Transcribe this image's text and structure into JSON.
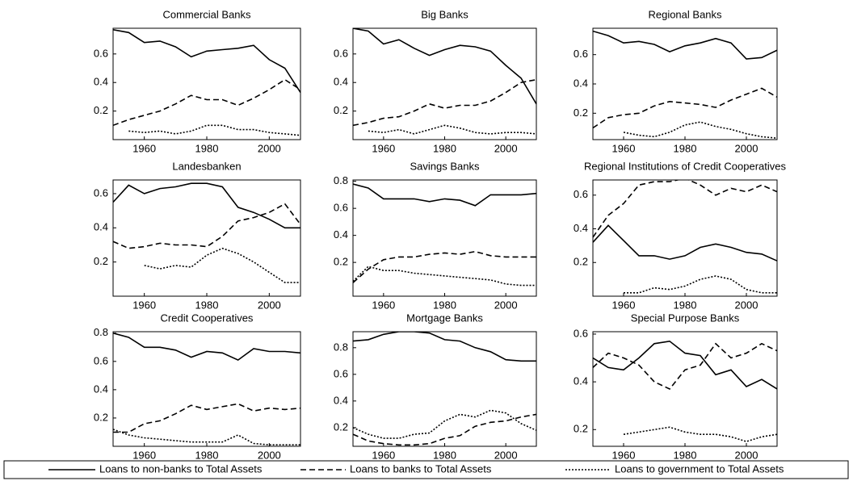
{
  "chart_data": [
    {
      "type": "line",
      "title": "Commercial Banks",
      "x": [
        1950,
        1955,
        1960,
        1965,
        1970,
        1975,
        1980,
        1985,
        1990,
        1995,
        2000,
        2005,
        2010
      ],
      "xlim": [
        1950,
        2010
      ],
      "xticks": [
        1960,
        1980,
        2000
      ],
      "ylim": [
        0,
        0.78
      ],
      "yticks": [
        0.2,
        0.4,
        0.6
      ],
      "series": [
        {
          "name": "Loans to non-banks to Total Assets",
          "dash": "solid",
          "color": "#000000",
          "values": [
            0.77,
            0.75,
            0.68,
            0.69,
            0.65,
            0.58,
            0.62,
            0.63,
            0.64,
            0.66,
            0.56,
            0.5,
            0.33
          ]
        },
        {
          "name": "Loans to banks to Total Assets",
          "dash": "dashed",
          "color": "#000000",
          "values": [
            0.1,
            0.14,
            0.17,
            0.2,
            0.25,
            0.31,
            0.28,
            0.28,
            0.24,
            0.29,
            0.35,
            0.42,
            0.35
          ]
        },
        {
          "name": "Loans to government to Total Assets",
          "dash": "dotted",
          "color": "#000000",
          "values": [
            null,
            0.06,
            0.05,
            0.06,
            0.04,
            0.06,
            0.1,
            0.1,
            0.07,
            0.07,
            0.05,
            0.04,
            0.03
          ]
        }
      ]
    },
    {
      "type": "line",
      "title": "Big Banks",
      "x": [
        1950,
        1955,
        1960,
        1965,
        1970,
        1975,
        1980,
        1985,
        1990,
        1995,
        2000,
        2005,
        2010
      ],
      "xlim": [
        1950,
        2010
      ],
      "xticks": [
        1960,
        1980,
        2000
      ],
      "ylim": [
        0,
        0.78
      ],
      "yticks": [
        0.2,
        0.4,
        0.6
      ],
      "series": [
        {
          "dash": "solid",
          "color": "#000000",
          "values": [
            0.78,
            0.76,
            0.67,
            0.7,
            0.64,
            0.59,
            0.63,
            0.66,
            0.65,
            0.62,
            0.52,
            0.43,
            0.25
          ]
        },
        {
          "dash": "dashed",
          "color": "#000000",
          "values": [
            0.1,
            0.12,
            0.15,
            0.16,
            0.2,
            0.25,
            0.22,
            0.24,
            0.24,
            0.27,
            0.33,
            0.4,
            0.42
          ]
        },
        {
          "dash": "dotted",
          "color": "#000000",
          "values": [
            null,
            0.06,
            0.05,
            0.07,
            0.04,
            0.07,
            0.1,
            0.08,
            0.05,
            0.04,
            0.05,
            0.05,
            0.04
          ]
        }
      ]
    },
    {
      "type": "line",
      "title": "Regional Banks",
      "x": [
        1950,
        1955,
        1960,
        1965,
        1970,
        1975,
        1980,
        1985,
        1990,
        1995,
        2000,
        2005,
        2010
      ],
      "xlim": [
        1950,
        2010
      ],
      "xticks": [
        1960,
        1980,
        2000
      ],
      "ylim": [
        0.02,
        0.78
      ],
      "yticks": [
        0.2,
        0.4,
        0.6
      ],
      "series": [
        {
          "dash": "solid",
          "color": "#000000",
          "values": [
            0.76,
            0.73,
            0.68,
            0.69,
            0.67,
            0.62,
            0.66,
            0.68,
            0.71,
            0.68,
            0.57,
            0.58,
            0.63
          ]
        },
        {
          "dash": "dashed",
          "color": "#000000",
          "values": [
            0.1,
            0.17,
            0.19,
            0.2,
            0.25,
            0.28,
            0.27,
            0.26,
            0.24,
            0.29,
            0.33,
            0.37,
            0.31
          ]
        },
        {
          "dash": "dotted",
          "color": "#000000",
          "values": [
            null,
            null,
            0.07,
            0.05,
            0.04,
            0.07,
            0.12,
            0.14,
            0.11,
            0.09,
            0.06,
            0.04,
            0.03
          ]
        }
      ]
    },
    {
      "type": "line",
      "title": "Landesbanken",
      "x": [
        1950,
        1955,
        1960,
        1965,
        1970,
        1975,
        1980,
        1985,
        1990,
        1995,
        2000,
        2005,
        2010
      ],
      "xlim": [
        1950,
        2010
      ],
      "xticks": [
        1960,
        1980,
        2000
      ],
      "ylim": [
        0,
        0.68
      ],
      "yticks": [
        0.2,
        0.4,
        0.6
      ],
      "series": [
        {
          "dash": "solid",
          "color": "#000000",
          "values": [
            0.55,
            0.65,
            0.6,
            0.63,
            0.64,
            0.66,
            0.66,
            0.64,
            0.52,
            0.49,
            0.45,
            0.4,
            0.4
          ]
        },
        {
          "dash": "dashed",
          "color": "#000000",
          "values": [
            0.32,
            0.28,
            0.29,
            0.31,
            0.3,
            0.3,
            0.29,
            0.35,
            0.44,
            0.46,
            0.49,
            0.54,
            0.42
          ]
        },
        {
          "dash": "dotted",
          "color": "#000000",
          "values": [
            null,
            null,
            0.18,
            0.16,
            0.18,
            0.17,
            0.24,
            0.28,
            0.25,
            0.2,
            0.14,
            0.08,
            0.08
          ]
        }
      ]
    },
    {
      "type": "line",
      "title": "Savings Banks",
      "x": [
        1950,
        1955,
        1960,
        1965,
        1970,
        1975,
        1980,
        1985,
        1990,
        1995,
        2000,
        2005,
        2010
      ],
      "xlim": [
        1950,
        2010
      ],
      "xticks": [
        1960,
        1980,
        2000
      ],
      "ylim": [
        -0.05,
        0.81
      ],
      "yticks": [
        0.2,
        0.4,
        0.6,
        0.8
      ],
      "series": [
        {
          "dash": "solid",
          "color": "#000000",
          "values": [
            0.78,
            0.75,
            0.67,
            0.67,
            0.67,
            0.65,
            0.67,
            0.66,
            0.62,
            0.7,
            0.7,
            0.7,
            0.71
          ]
        },
        {
          "dash": "dashed",
          "color": "#000000",
          "values": [
            0.05,
            0.15,
            0.22,
            0.24,
            0.24,
            0.26,
            0.27,
            0.26,
            0.28,
            0.25,
            0.24,
            0.24,
            0.24
          ]
        },
        {
          "dash": "dotted",
          "color": "#000000",
          "values": [
            0.06,
            0.17,
            0.14,
            0.14,
            0.12,
            0.11,
            0.1,
            0.09,
            0.08,
            0.07,
            0.04,
            0.03,
            0.03
          ]
        }
      ]
    },
    {
      "type": "line",
      "title": "Regional Institutions of Credit Cooperatives",
      "x": [
        1950,
        1955,
        1960,
        1965,
        1970,
        1975,
        1980,
        1985,
        1990,
        1995,
        2000,
        2005,
        2010
      ],
      "xlim": [
        1950,
        2010
      ],
      "xticks": [
        1960,
        1980,
        2000
      ],
      "ylim": [
        0,
        0.69
      ],
      "yticks": [
        0.2,
        0.4,
        0.6
      ],
      "series": [
        {
          "dash": "solid",
          "color": "#000000",
          "values": [
            0.32,
            0.42,
            0.33,
            0.24,
            0.24,
            0.22,
            0.24,
            0.29,
            0.31,
            0.29,
            0.26,
            0.25,
            0.21
          ]
        },
        {
          "dash": "dashed",
          "color": "#000000",
          "values": [
            0.35,
            0.48,
            0.55,
            0.66,
            0.68,
            0.68,
            0.7,
            0.66,
            0.6,
            0.64,
            0.62,
            0.66,
            0.62
          ]
        },
        {
          "dash": "dotted",
          "color": "#000000",
          "values": [
            null,
            null,
            0.02,
            0.02,
            0.05,
            0.04,
            0.06,
            0.1,
            0.12,
            0.1,
            0.04,
            0.02,
            0.02
          ]
        }
      ]
    },
    {
      "type": "line",
      "title": "Credit Cooperatives",
      "x": [
        1950,
        1955,
        1960,
        1965,
        1970,
        1975,
        1980,
        1985,
        1990,
        1995,
        2000,
        2005,
        2010
      ],
      "xlim": [
        1950,
        2010
      ],
      "xticks": [
        1960,
        1980,
        2000
      ],
      "ylim": [
        0,
        0.81
      ],
      "yticks": [
        0.2,
        0.4,
        0.6,
        0.8
      ],
      "series": [
        {
          "dash": "solid",
          "color": "#000000",
          "values": [
            0.8,
            0.77,
            0.7,
            0.7,
            0.68,
            0.63,
            0.67,
            0.66,
            0.61,
            0.69,
            0.67,
            0.67,
            0.66
          ]
        },
        {
          "dash": "dashed",
          "color": "#000000",
          "values": [
            0.1,
            0.1,
            0.16,
            0.18,
            0.23,
            0.29,
            0.26,
            0.28,
            0.3,
            0.25,
            0.27,
            0.26,
            0.27
          ]
        },
        {
          "dash": "dotted",
          "color": "#000000",
          "values": [
            0.12,
            0.08,
            0.06,
            0.05,
            0.04,
            0.03,
            0.03,
            0.03,
            0.08,
            0.02,
            0.01,
            0.01,
            0.01
          ]
        }
      ]
    },
    {
      "type": "line",
      "title": "Mortgage Banks",
      "x": [
        1950,
        1955,
        1960,
        1965,
        1970,
        1975,
        1980,
        1985,
        1990,
        1995,
        2000,
        2005,
        2010
      ],
      "xlim": [
        1950,
        2010
      ],
      "xticks": [
        1960,
        1980,
        2000
      ],
      "ylim": [
        0.06,
        0.92
      ],
      "yticks": [
        0.2,
        0.4,
        0.6,
        0.8
      ],
      "series": [
        {
          "dash": "solid",
          "color": "#000000",
          "values": [
            0.85,
            0.86,
            0.9,
            0.92,
            0.92,
            0.91,
            0.86,
            0.85,
            0.8,
            0.77,
            0.71,
            0.7,
            0.7
          ]
        },
        {
          "dash": "dashed",
          "color": "#000000",
          "values": [
            0.15,
            0.1,
            0.08,
            0.07,
            0.07,
            0.08,
            0.12,
            0.14,
            0.21,
            0.24,
            0.25,
            0.28,
            0.3
          ]
        },
        {
          "dash": "dotted",
          "color": "#000000",
          "values": [
            0.2,
            0.15,
            0.12,
            0.12,
            0.15,
            0.16,
            0.25,
            0.3,
            0.28,
            0.33,
            0.31,
            0.23,
            0.18
          ]
        }
      ]
    },
    {
      "type": "line",
      "title": "Special Purpose Banks",
      "x": [
        1950,
        1955,
        1960,
        1965,
        1970,
        1975,
        1980,
        1985,
        1990,
        1995,
        2000,
        2005,
        2010
      ],
      "xlim": [
        1950,
        2010
      ],
      "xticks": [
        1960,
        1980,
        2000
      ],
      "ylim": [
        0.13,
        0.61
      ],
      "yticks": [
        0.2,
        0.4,
        0.6
      ],
      "series": [
        {
          "dash": "solid",
          "color": "#000000",
          "values": [
            0.5,
            0.46,
            0.45,
            0.5,
            0.56,
            0.57,
            0.52,
            0.51,
            0.43,
            0.45,
            0.38,
            0.41,
            0.37
          ]
        },
        {
          "dash": "dashed",
          "color": "#000000",
          "values": [
            0.46,
            0.52,
            0.5,
            0.47,
            0.4,
            0.37,
            0.45,
            0.47,
            0.56,
            0.5,
            0.52,
            0.56,
            0.53
          ]
        },
        {
          "dash": "dotted",
          "color": "#000000",
          "values": [
            null,
            null,
            0.18,
            0.19,
            0.2,
            0.21,
            0.19,
            0.18,
            0.18,
            0.17,
            0.15,
            0.17,
            0.18
          ]
        }
      ]
    }
  ]
}
